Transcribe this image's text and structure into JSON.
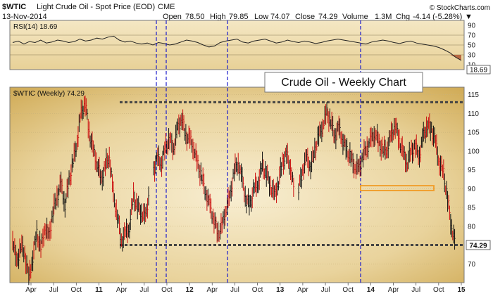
{
  "header": {
    "symbol": "$WTIC",
    "description": "Light Crude Oil - Spot Price (EOD)",
    "exchange": "CME",
    "date": "13-Nov-2014",
    "open_label": "Open",
    "open": "78.50",
    "high_label": "High",
    "high": "79.85",
    "low_label": "Low",
    "low": "74.07",
    "close_label": "Close",
    "close": "74.29",
    "volume_label": "Volume",
    "volume": "1.3M",
    "chg_label": "Chg",
    "chg": "-4.14 (-5.28%)",
    "chg_arrow": "▼",
    "watermark": "© StockCharts.com"
  },
  "chart_data": {
    "type": "line",
    "annotation_title": "Crude Oil - Weekly Chart",
    "main_panel": {
      "legend": "$WTIC (Weekly) 74.29",
      "last_value_label": "74.29",
      "y_ticks": [
        70,
        75,
        80,
        85,
        90,
        95,
        100,
        105,
        110,
        115
      ],
      "ylim": [
        65,
        117
      ],
      "x_tick_labels": [
        "Apr",
        "Jul",
        "Oct",
        "11",
        "Apr",
        "Jul",
        "Oct",
        "12",
        "Apr",
        "Jul",
        "Oct",
        "13",
        "Apr",
        "Jul",
        "Oct",
        "14",
        "Apr",
        "Jul",
        "Oct",
        "15"
      ],
      "x_tick_bold": [
        "11",
        "12",
        "13",
        "14",
        "15"
      ],
      "series": [
        {
          "x": [
            0,
            6,
            12,
            18,
            24,
            30,
            36,
            42,
            48,
            54,
            60,
            66,
            72,
            78,
            84,
            90,
            96,
            102,
            108,
            114,
            120,
            126,
            132,
            138,
            144,
            150,
            156,
            162,
            168,
            174,
            180,
            186,
            192,
            198,
            204
          ],
          "y": [
            77,
            70,
            75,
            73,
            66,
            72,
            78,
            74,
            80,
            77,
            84,
            88,
            91,
            86,
            92,
            97,
            103,
            110,
            113,
            105,
            100,
            97,
            92,
            96,
            99,
            88,
            83,
            76,
            78,
            80,
            88,
            85,
            84,
            82,
            90
          ]
        },
        {
          "x": [
            210,
            216,
            222,
            228,
            234,
            240,
            246,
            252,
            258,
            264,
            270,
            276,
            282,
            288,
            294,
            300,
            306,
            312,
            318,
            324,
            330,
            336,
            342,
            348,
            354,
            360,
            366,
            372,
            378,
            384,
            390,
            396,
            402,
            408,
            414,
            420
          ],
          "y": [
            95,
            98,
            97,
            101,
            103,
            101,
            106,
            109,
            104,
            103,
            101,
            96,
            93,
            89,
            85,
            82,
            78,
            80,
            85,
            88,
            95,
            97,
            92,
            87,
            86,
            90,
            92,
            96,
            94,
            91,
            88,
            92,
            97,
            99,
            96,
            88
          ]
        },
        {
          "x": [
            426,
            432,
            438,
            444,
            450,
            456,
            462,
            468,
            474,
            480,
            486,
            492,
            498,
            504,
            510,
            516,
            522,
            528,
            534,
            540,
            546,
            552,
            558,
            564,
            570,
            576,
            582,
            588,
            594,
            600,
            606,
            612,
            618,
            624,
            630,
            636,
            642,
            648,
            654,
            660
          ],
          "y": [
            90,
            95,
            98,
            96,
            100,
            104,
            107,
            110,
            108,
            104,
            106,
            103,
            100,
            98,
            96,
            95,
            99,
            101,
            103,
            105,
            102,
            100,
            101,
            104,
            107,
            103,
            99,
            97,
            100,
            101,
            99,
            104,
            107,
            106,
            102,
            97,
            94,
            87,
            80,
            74.29
          ]
        }
      ],
      "resistance_level": 113,
      "support_level": 75,
      "support_zone": [
        89.5,
        90.8
      ],
      "vertical_markers": [
        "Jun 2011",
        "Oct 2011",
        "Jun 2012",
        "Dec 2013"
      ]
    },
    "rsi_panel": {
      "legend": "RSI(14) 18.69",
      "last_value_label": "18.69",
      "y_ticks": [
        10,
        30,
        50,
        70,
        90
      ],
      "ylim": [
        0,
        100
      ],
      "reference_lines": [
        30,
        50,
        70
      ],
      "values": [
        55,
        58,
        52,
        57,
        55,
        60,
        54,
        56,
        60,
        58,
        55,
        57,
        62,
        58,
        60,
        64,
        62,
        66,
        68,
        60,
        56,
        58,
        54,
        52,
        54,
        50,
        55,
        53,
        50,
        52,
        56,
        60,
        58,
        55,
        50,
        46,
        48,
        55,
        58,
        60,
        62,
        56,
        54,
        58,
        60,
        62,
        58,
        54,
        56,
        60,
        57,
        55,
        58,
        56,
        53,
        55,
        58,
        60,
        62,
        60,
        58,
        56,
        54,
        52,
        56,
        58,
        60,
        58,
        55,
        53,
        56,
        58,
        54,
        52,
        50,
        48,
        45,
        40,
        34,
        25,
        18.69
      ]
    }
  },
  "colors": {
    "rise": "#111111",
    "fall": "#cc1111",
    "accent_blue": "#1a1acc",
    "support_orange": "#f0a030",
    "rsi_fill": "#b76a44"
  }
}
